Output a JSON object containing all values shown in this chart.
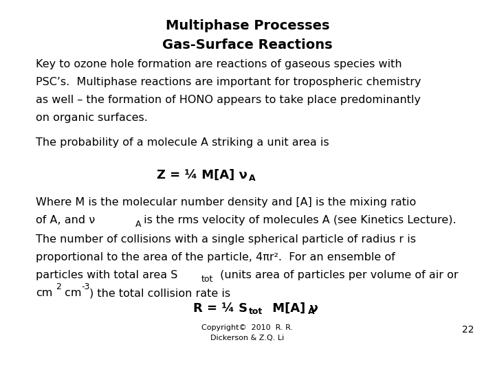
{
  "title1": "Multiphase Processes",
  "title2": "Gas-Surface Reactions",
  "para1_l1": "Key to ozone hole formation are reactions of gaseous species with",
  "para1_l2": "PSC’s.  Multiphase reactions are important for tropospheric chemistry",
  "para1_l3": "as well – the formation of HONO appears to take place predominantly",
  "para1_l4": "on organic surfaces.",
  "para2": "The probability of a molecule A striking a unit area is",
  "para3_l1": "Where M is the molecular number density and [A] is the mixing ratio",
  "para3_l2a": "of A, and ν",
  "para3_l2b": "A",
  "para3_l2c": " is the rms velocity of molecules A (see Kinetics Lecture).",
  "para4_l1": "The number of collisions with a single spherical particle of radius r is",
  "para4_l2": "proportional to the area of the particle, 4πr².  For an ensemble of",
  "para4_l3a": "particles with total area S",
  "para4_l3b": "tot",
  "para4_l3c": " (units area of particles per volume of air or",
  "para4_l4a": "cm",
  "para4_l4b": "2",
  "para4_l4c": " cm",
  "para4_l4d": "-3",
  "para4_l4e": ") the total collision rate is",
  "copyright": "Copyright©  2010  R. R.\nDickerson & Z.Q. Li",
  "page": "22",
  "bg_color": "#ffffff",
  "text_color": "#000000",
  "title_fontsize": 14,
  "body_fontsize": 11.5,
  "eq_fontsize": 13,
  "sub_fontsize": 9
}
